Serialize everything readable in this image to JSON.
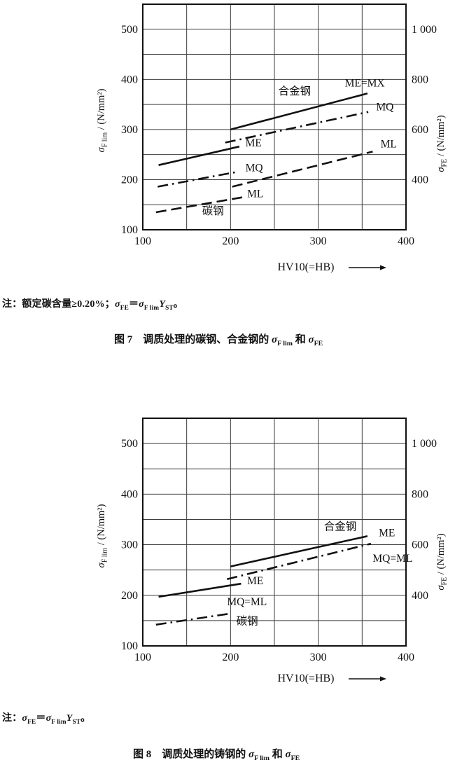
{
  "colors": {
    "ink": "#111111",
    "grid": "#3c3c3c",
    "paper": "#ffffff"
  },
  "axis_labels": {
    "left_parts": [
      {
        "t": "σ",
        "i": 1
      },
      {
        "t": "F lim",
        "sub": 1
      },
      {
        "t": " / (N/mm²)"
      }
    ],
    "right_parts": [
      {
        "t": "σ",
        "i": 1
      },
      {
        "t": "FE",
        "sub": 1
      },
      {
        "t": " / (N/mm²)"
      }
    ]
  },
  "figures": [
    {
      "note_parts": [
        {
          "t": "注：额定碳含量≥0.20%；"
        },
        {
          "t": "σ",
          "i": 1
        },
        {
          "t": "FE",
          "sub": 1
        },
        {
          "t": "＝"
        },
        {
          "t": "σ",
          "i": 1
        },
        {
          "t": "F lim",
          "sub": 1
        },
        {
          "t": "Y",
          "i": 1
        },
        {
          "t": "ST",
          "sub": 1
        },
        {
          "t": "。"
        }
      ],
      "caption_parts": [
        {
          "t": "图 7　调质处理的碳钢、合金钢的 "
        },
        {
          "t": "σ",
          "i": 1
        },
        {
          "t": "F lim",
          "sub": 1
        },
        {
          "t": " 和 "
        },
        {
          "t": "σ",
          "i": 1
        },
        {
          "t": "FE",
          "sub": 1
        }
      ]
    },
    {
      "note_parts": [
        {
          "t": "注："
        },
        {
          "t": "σ",
          "i": 1
        },
        {
          "t": "FE",
          "sub": 1
        },
        {
          "t": "＝"
        },
        {
          "t": "σ",
          "i": 1
        },
        {
          "t": "F lim",
          "sub": 1
        },
        {
          "t": "Y",
          "i": 1
        },
        {
          "t": "ST",
          "sub": 1
        },
        {
          "t": "。"
        }
      ],
      "caption_parts": [
        {
          "t": "图 8　调质处理的铸钢的 "
        },
        {
          "t": "σ",
          "i": 1
        },
        {
          "t": "F lim",
          "sub": 1
        },
        {
          "t": " 和 "
        },
        {
          "t": "σ",
          "i": 1
        },
        {
          "t": "FE",
          "sub": 1
        }
      ]
    }
  ],
  "chart_data": [
    {
      "type": "line",
      "title": "调质处理的碳钢、合金钢的 σF lim 和 σFE",
      "xlabel": "HV10(=HB)",
      "ylabel_left": "σF lim / (N/mm²)",
      "ylabel_right": "σFE / (N/mm²)",
      "xlim": [
        100,
        400
      ],
      "ylim_left": [
        100,
        550
      ],
      "grid": "both axes, every 50 units",
      "x_ticks": [
        "100",
        "200",
        "300",
        "400"
      ],
      "y_ticks_left": [
        {
          "value": 100,
          "label": "100"
        },
        {
          "value": 200,
          "label": "200"
        },
        {
          "value": 300,
          "label": "300"
        },
        {
          "value": 400,
          "label": "400"
        },
        {
          "value": 500,
          "label": "500"
        }
      ],
      "y_ticks_right": [
        {
          "value": 500,
          "label": "1 000"
        },
        {
          "value": 400,
          "label": "800"
        },
        {
          "value": 300,
          "label": "600"
        },
        {
          "value": 200,
          "label": "400"
        }
      ],
      "series": [
        {
          "group": "碳钢",
          "name": "ME",
          "style": "solid",
          "points": [
            [
              118,
              229
            ],
            [
              210,
              266
            ]
          ]
        },
        {
          "group": "碳钢",
          "name": "MQ",
          "style": "dashdot",
          "points": [
            [
              117,
              186
            ],
            [
              209,
              216
            ]
          ]
        },
        {
          "group": "碳钢",
          "name": "ML",
          "style": "dashed",
          "points": [
            [
              115,
              135
            ],
            [
              214,
              165
            ]
          ]
        },
        {
          "group": "合金钢",
          "name": "ME=MX",
          "style": "solid",
          "points": [
            [
              200,
              300
            ],
            [
              356,
              372
            ]
          ]
        },
        {
          "group": "合金钢",
          "name": "MQ",
          "style": "dashdot",
          "points": [
            [
              194,
              274
            ],
            [
              357,
              335
            ]
          ]
        },
        {
          "group": "合金钢",
          "name": "ML",
          "style": "dashed",
          "points": [
            [
              202,
              186
            ],
            [
              362,
              256
            ]
          ]
        }
      ],
      "annotations": [
        {
          "text": "合金钢",
          "x": 273,
          "y": 370,
          "anchor": "middle"
        },
        {
          "text": "ME=MX",
          "x": 353,
          "y": 386,
          "anchor": "middle"
        },
        {
          "text": "MQ",
          "x": 366,
          "y": 338,
          "anchor": "start"
        },
        {
          "text": "ML",
          "x": 371,
          "y": 264,
          "anchor": "start"
        },
        {
          "text": "ME",
          "x": 217,
          "y": 266,
          "anchor": "start"
        },
        {
          "text": "MQ",
          "x": 217,
          "y": 217,
          "anchor": "start"
        },
        {
          "text": "ML",
          "x": 219,
          "y": 165,
          "anchor": "start"
        },
        {
          "text": "碳钢",
          "x": 180,
          "y": 131,
          "anchor": "middle"
        }
      ]
    },
    {
      "type": "line",
      "title": "调质处理的铸钢的 σF lim 和 σFE",
      "xlabel": "HV10(=HB)",
      "ylabel_left": "σF lim / (N/mm²)",
      "ylabel_right": "σFE / (N/mm²)",
      "xlim": [
        100,
        400
      ],
      "ylim_left": [
        100,
        550
      ],
      "grid": "both axes, every 50 units",
      "x_ticks": [
        "100",
        "200",
        "300",
        "400"
      ],
      "y_ticks_left": [
        {
          "value": 100,
          "label": "100"
        },
        {
          "value": 200,
          "label": "200"
        },
        {
          "value": 300,
          "label": "300"
        },
        {
          "value": 400,
          "label": "400"
        },
        {
          "value": 500,
          "label": "500"
        }
      ],
      "y_ticks_right": [
        {
          "value": 500,
          "label": "1 000"
        },
        {
          "value": 400,
          "label": "800"
        },
        {
          "value": 300,
          "label": "600"
        },
        {
          "value": 200,
          "label": "400"
        }
      ],
      "series": [
        {
          "group": "碳钢",
          "name": "ME",
          "style": "solid",
          "points": [
            [
              118,
              197
            ],
            [
              212,
              223
            ]
          ]
        },
        {
          "group": "碳钢",
          "name": "MQ=ML",
          "style": "dashdot",
          "points": [
            [
              115,
              142
            ],
            [
              200,
              164
            ]
          ]
        },
        {
          "group": "合金钢",
          "name": "ME",
          "style": "solid",
          "points": [
            [
              200,
              257
            ],
            [
              356,
              317
            ]
          ]
        },
        {
          "group": "合金钢",
          "name": "MQ=ML",
          "style": "dashdot",
          "points": [
            [
              196,
              232
            ],
            [
              360,
              302
            ]
          ]
        }
      ],
      "annotations": [
        {
          "text": "合金钢",
          "x": 325,
          "y": 329,
          "anchor": "middle"
        },
        {
          "text": "ME",
          "x": 369,
          "y": 317,
          "anchor": "start"
        },
        {
          "text": "MQ=ML",
          "x": 362,
          "y": 266,
          "anchor": "start"
        },
        {
          "text": "ME",
          "x": 219,
          "y": 222,
          "anchor": "start"
        },
        {
          "text": "MQ=ML",
          "x": 196,
          "y": 180,
          "anchor": "start"
        },
        {
          "text": "碳钢",
          "x": 219,
          "y": 142,
          "anchor": "middle"
        }
      ]
    }
  ]
}
